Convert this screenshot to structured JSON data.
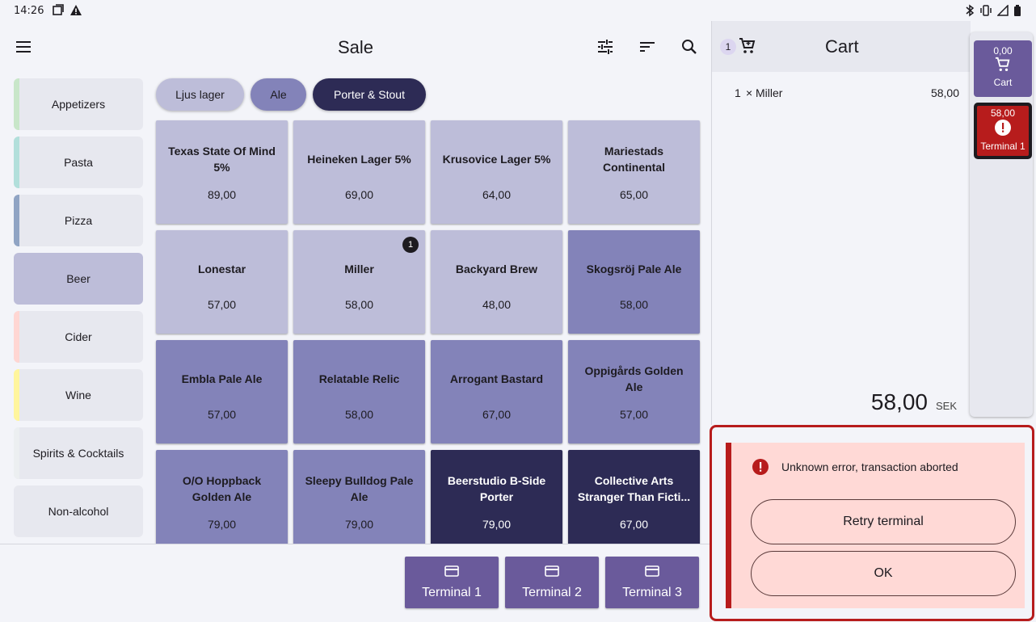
{
  "status_bar": {
    "time": "14:26"
  },
  "app_bar": {
    "title": "Sale"
  },
  "categories": [
    {
      "label": "Appetizers",
      "stripe": "#c8e6c9"
    },
    {
      "label": "Pasta",
      "stripe": "#b2dfdb"
    },
    {
      "label": "Pizza",
      "stripe": "#90a4c4"
    },
    {
      "label": "Beer",
      "stripe": ""
    },
    {
      "label": "Cider",
      "stripe": "#ffd6d3"
    },
    {
      "label": "Wine",
      "stripe": "#fff59d"
    },
    {
      "label": "Spirits & Cocktails",
      "stripe": "#eceff1"
    },
    {
      "label": "Non-alcohol",
      "stripe": ""
    }
  ],
  "chips": [
    {
      "label": "Ljus lager"
    },
    {
      "label": "Ale"
    },
    {
      "label": "Porter & Stout"
    }
  ],
  "products": [
    {
      "name": "Texas State Of Mind 5%",
      "price": "89,00"
    },
    {
      "name": "Heineken Lager 5%",
      "price": "69,00"
    },
    {
      "name": "Krusovice Lager 5%",
      "price": "64,00"
    },
    {
      "name": "Mariestads Continental",
      "price": "65,00"
    },
    {
      "name": "Lonestar",
      "price": "57,00"
    },
    {
      "name": "Miller",
      "price": "58,00",
      "badge": "1"
    },
    {
      "name": "Backyard Brew",
      "price": "48,00"
    },
    {
      "name": "Skogsröj Pale Ale",
      "price": "58,00"
    },
    {
      "name": "Embla Pale Ale",
      "price": "57,00"
    },
    {
      "name": "Relatable Relic",
      "price": "58,00"
    },
    {
      "name": "Arrogant Bastard",
      "price": "67,00"
    },
    {
      "name": "Oppigårds Golden Ale",
      "price": "57,00"
    },
    {
      "name": "O/O Hoppback Golden Ale",
      "price": "79,00"
    },
    {
      "name": "Sleepy Bulldog Pale Ale",
      "price": "79,00"
    },
    {
      "name": "Beerstudio B-Side Porter",
      "price": "79,00"
    },
    {
      "name": "Collective Arts Stranger Than Ficti...",
      "price": "67,00"
    }
  ],
  "terminals": [
    {
      "label": "Terminal 1"
    },
    {
      "label": "Terminal 2"
    },
    {
      "label": "Terminal 3"
    }
  ],
  "cart": {
    "count": "1",
    "title": "Cart",
    "lines": [
      {
        "qty": "1",
        "times": "×",
        "name": "Miller",
        "price": "58,00"
      }
    ],
    "total": "58,00",
    "currency": "SEK"
  },
  "rail": {
    "cart": {
      "value": "0,00",
      "label": "Cart"
    },
    "terminal": {
      "value": "58,00",
      "label": "Terminal 1"
    }
  },
  "error": {
    "message": "Unknown error, transaction aborted",
    "retry_label": "Retry terminal",
    "ok_label": "OK"
  },
  "colors": {
    "accent": "#6a5a9b",
    "error": "#b71c1c",
    "product_light": "#bdbdd9",
    "product_mid": "#8383b9",
    "product_dark": "#2d2b55"
  }
}
